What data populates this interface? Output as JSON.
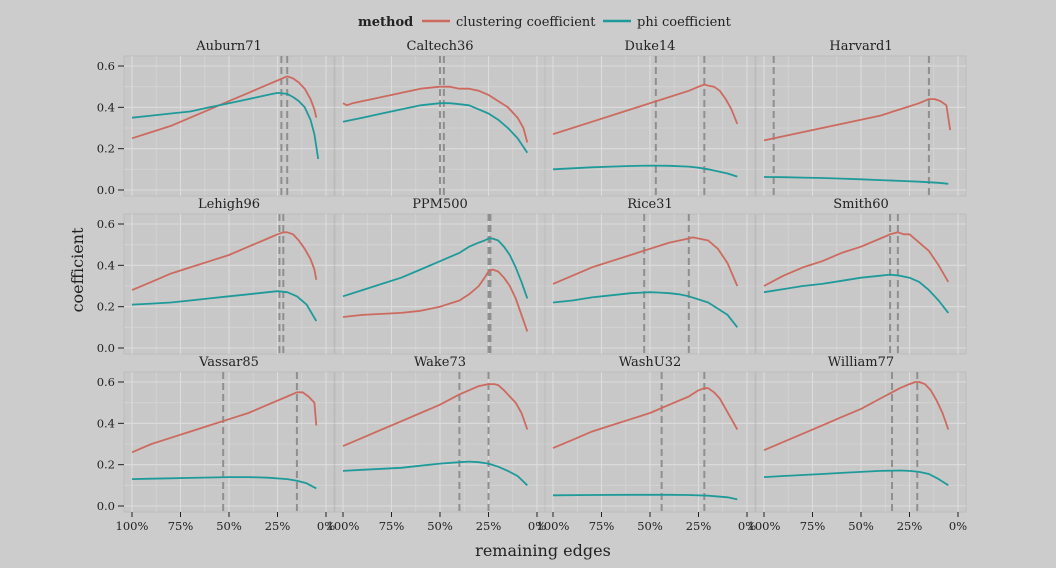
{
  "chart_data": {
    "type": "line",
    "xlabel": "remaining edges",
    "ylabel": "coefficient",
    "xlim": [
      100,
      0
    ],
    "ylim": [
      0,
      0.6
    ],
    "xticks": [
      "100%",
      "75%",
      "50%",
      "25%",
      "0%"
    ],
    "xtick_values": [
      100,
      75,
      50,
      25,
      0
    ],
    "yticks": [
      "0.0",
      "0.2",
      "0.4",
      "0.6"
    ],
    "ytick_values": [
      0,
      0.2,
      0.4,
      0.6
    ],
    "grid": true,
    "legend": {
      "title": "method",
      "position": "top",
      "entries": [
        {
          "name": "clustering coefficient",
          "color": "#cd6a5f"
        },
        {
          "name": "phi coefficient",
          "color": "#1f9a9a"
        }
      ]
    },
    "panels": [
      {
        "title": "Auburn71",
        "vlines": [
          23,
          20
        ],
        "series": [
          {
            "name": "clustering coefficient",
            "x": [
              100,
              90,
              80,
              70,
              60,
              50,
              40,
              35,
              30,
              25,
              20,
              17,
              14,
              11,
              8,
              6,
              5
            ],
            "y": [
              0.25,
              0.28,
              0.31,
              0.35,
              0.39,
              0.43,
              0.47,
              0.49,
              0.51,
              0.53,
              0.55,
              0.54,
              0.52,
              0.49,
              0.44,
              0.39,
              0.35
            ]
          },
          {
            "name": "phi coefficient",
            "x": [
              100,
              90,
              80,
              70,
              60,
              50,
              40,
              35,
              30,
              25,
              20,
              17,
              14,
              11,
              8,
              6,
              4
            ],
            "y": [
              0.35,
              0.36,
              0.37,
              0.38,
              0.4,
              0.42,
              0.44,
              0.45,
              0.46,
              0.47,
              0.465,
              0.45,
              0.43,
              0.4,
              0.34,
              0.27,
              0.15
            ]
          }
        ]
      },
      {
        "title": "Caltech36",
        "vlines": [
          50,
          48
        ],
        "series": [
          {
            "name": "clustering coefficient",
            "x": [
              100,
              98,
              95,
              90,
              85,
              80,
              70,
              60,
              50,
              45,
              40,
              35,
              30,
              25,
              20,
              15,
              10,
              7,
              5
            ],
            "y": [
              0.42,
              0.41,
              0.42,
              0.43,
              0.44,
              0.45,
              0.47,
              0.49,
              0.5,
              0.5,
              0.49,
              0.49,
              0.48,
              0.46,
              0.43,
              0.4,
              0.35,
              0.3,
              0.23
            ]
          },
          {
            "name": "phi coefficient",
            "x": [
              100,
              90,
              80,
              70,
              60,
              50,
              45,
              40,
              35,
              30,
              25,
              20,
              15,
              10,
              5
            ],
            "y": [
              0.33,
              0.35,
              0.37,
              0.39,
              0.41,
              0.42,
              0.42,
              0.415,
              0.41,
              0.39,
              0.37,
              0.34,
              0.3,
              0.25,
              0.18
            ]
          }
        ]
      },
      {
        "title": "Duke14",
        "vlines": [
          47,
          22
        ],
        "series": [
          {
            "name": "clustering coefficient",
            "x": [
              100,
              90,
              80,
              70,
              60,
              50,
              40,
              30,
              25,
              22,
              20,
              17,
              14,
              11,
              8,
              5
            ],
            "y": [
              0.27,
              0.3,
              0.33,
              0.36,
              0.39,
              0.42,
              0.45,
              0.48,
              0.5,
              0.51,
              0.505,
              0.5,
              0.48,
              0.44,
              0.39,
              0.32
            ]
          },
          {
            "name": "phi coefficient",
            "x": [
              100,
              90,
              80,
              70,
              60,
              50,
              40,
              30,
              25,
              20,
              15,
              10,
              5
            ],
            "y": [
              0.1,
              0.105,
              0.11,
              0.113,
              0.116,
              0.118,
              0.117,
              0.113,
              0.108,
              0.1,
              0.09,
              0.08,
              0.065
            ]
          }
        ]
      },
      {
        "title": "Harvard1",
        "vlines": [
          95,
          15
        ],
        "series": [
          {
            "name": "clustering coefficient",
            "x": [
              100,
              90,
              80,
              70,
              60,
              50,
              40,
              30,
              20,
              15,
              12,
              9,
              6,
              4
            ],
            "y": [
              0.24,
              0.26,
              0.28,
              0.3,
              0.32,
              0.34,
              0.36,
              0.39,
              0.42,
              0.44,
              0.44,
              0.43,
              0.41,
              0.29
            ]
          },
          {
            "name": "phi coefficient",
            "x": [
              100,
              90,
              80,
              70,
              60,
              50,
              40,
              30,
              20,
              10,
              5
            ],
            "y": [
              0.063,
              0.062,
              0.06,
              0.058,
              0.055,
              0.052,
              0.048,
              0.044,
              0.04,
              0.035,
              0.03
            ]
          }
        ]
      },
      {
        "title": "Lehigh96",
        "vlines": [
          24,
          22
        ],
        "series": [
          {
            "name": "clustering coefficient",
            "x": [
              100,
              90,
              80,
              70,
              60,
              50,
              40,
              35,
              30,
              25,
              22,
              20,
              17,
              14,
              11,
              8,
              6,
              5
            ],
            "y": [
              0.28,
              0.32,
              0.36,
              0.39,
              0.42,
              0.45,
              0.49,
              0.51,
              0.53,
              0.55,
              0.56,
              0.56,
              0.55,
              0.52,
              0.48,
              0.43,
              0.38,
              0.33
            ]
          },
          {
            "name": "phi coefficient",
            "x": [
              100,
              90,
              80,
              70,
              60,
              50,
              40,
              30,
              25,
              20,
              15,
              10,
              5
            ],
            "y": [
              0.21,
              0.215,
              0.22,
              0.23,
              0.24,
              0.25,
              0.26,
              0.27,
              0.275,
              0.27,
              0.25,
              0.21,
              0.13
            ]
          }
        ]
      },
      {
        "title": "PPM500",
        "vlines": [
          25,
          24
        ],
        "series": [
          {
            "name": "clustering coefficient",
            "x": [
              100,
              90,
              80,
              70,
              60,
              50,
              40,
              35,
              30,
              27,
              25,
              23,
              20,
              17,
              14,
              11,
              8,
              5
            ],
            "y": [
              0.15,
              0.16,
              0.165,
              0.17,
              0.18,
              0.2,
              0.23,
              0.26,
              0.3,
              0.34,
              0.37,
              0.38,
              0.37,
              0.34,
              0.3,
              0.24,
              0.16,
              0.08
            ]
          },
          {
            "name": "phi coefficient",
            "x": [
              100,
              90,
              80,
              70,
              60,
              50,
              40,
              35,
              30,
              27,
              25,
              23,
              20,
              17,
              14,
              11,
              8,
              5
            ],
            "y": [
              0.25,
              0.28,
              0.31,
              0.34,
              0.38,
              0.42,
              0.46,
              0.49,
              0.51,
              0.52,
              0.53,
              0.53,
              0.52,
              0.49,
              0.45,
              0.39,
              0.32,
              0.24
            ]
          }
        ]
      },
      {
        "title": "Rice31",
        "vlines": [
          53,
          30
        ],
        "series": [
          {
            "name": "clustering coefficient",
            "x": [
              100,
              90,
              80,
              70,
              60,
              50,
              40,
              30,
              28,
              25,
              20,
              15,
              10,
              5
            ],
            "y": [
              0.31,
              0.35,
              0.39,
              0.42,
              0.45,
              0.48,
              0.51,
              0.53,
              0.535,
              0.53,
              0.52,
              0.48,
              0.41,
              0.3
            ]
          },
          {
            "name": "phi coefficient",
            "x": [
              100,
              90,
              80,
              70,
              60,
              50,
              45,
              40,
              35,
              30,
              20,
              10,
              5
            ],
            "y": [
              0.22,
              0.23,
              0.245,
              0.255,
              0.265,
              0.27,
              0.268,
              0.265,
              0.26,
              0.25,
              0.22,
              0.16,
              0.1
            ]
          }
        ]
      },
      {
        "title": "Smith60",
        "vlines": [
          35,
          31
        ],
        "series": [
          {
            "name": "clustering coefficient",
            "x": [
              100,
              90,
              80,
              70,
              60,
              50,
              40,
              35,
              31,
              28,
              25,
              20,
              15,
              10,
              5
            ],
            "y": [
              0.3,
              0.35,
              0.39,
              0.42,
              0.46,
              0.49,
              0.53,
              0.55,
              0.56,
              0.55,
              0.55,
              0.51,
              0.47,
              0.4,
              0.32
            ]
          },
          {
            "name": "phi coefficient",
            "x": [
              100,
              90,
              80,
              70,
              60,
              50,
              40,
              35,
              30,
              25,
              20,
              15,
              10,
              5
            ],
            "y": [
              0.27,
              0.285,
              0.3,
              0.31,
              0.325,
              0.34,
              0.35,
              0.355,
              0.35,
              0.34,
              0.32,
              0.28,
              0.23,
              0.17
            ]
          }
        ]
      },
      {
        "title": "Vassar85",
        "vlines": [
          53,
          15
        ],
        "series": [
          {
            "name": "clustering coefficient",
            "x": [
              100,
              90,
              80,
              70,
              60,
              50,
              40,
              30,
              20,
              15,
              12,
              9,
              6,
              5
            ],
            "y": [
              0.26,
              0.3,
              0.33,
              0.36,
              0.39,
              0.42,
              0.45,
              0.49,
              0.53,
              0.55,
              0.55,
              0.53,
              0.5,
              0.39
            ]
          },
          {
            "name": "phi coefficient",
            "x": [
              100,
              90,
              80,
              70,
              60,
              50,
              40,
              30,
              20,
              15,
              10,
              5
            ],
            "y": [
              0.13,
              0.132,
              0.134,
              0.136,
              0.138,
              0.14,
              0.14,
              0.137,
              0.13,
              0.122,
              0.11,
              0.085
            ]
          }
        ]
      },
      {
        "title": "Wake73",
        "vlines": [
          40,
          25
        ],
        "series": [
          {
            "name": "clustering coefficient",
            "x": [
              100,
              90,
              80,
              70,
              60,
              50,
              40,
              30,
              25,
              22,
              20,
              17,
              14,
              11,
              8,
              5
            ],
            "y": [
              0.29,
              0.33,
              0.37,
              0.41,
              0.45,
              0.49,
              0.54,
              0.58,
              0.59,
              0.59,
              0.585,
              0.56,
              0.53,
              0.5,
              0.45,
              0.37
            ]
          },
          {
            "name": "phi coefficient",
            "x": [
              100,
              90,
              80,
              70,
              60,
              50,
              40,
              35,
              30,
              25,
              20,
              15,
              10,
              5
            ],
            "y": [
              0.17,
              0.175,
              0.18,
              0.185,
              0.195,
              0.205,
              0.212,
              0.215,
              0.212,
              0.205,
              0.19,
              0.17,
              0.145,
              0.1
            ]
          }
        ]
      },
      {
        "title": "WashU32",
        "vlines": [
          44,
          22
        ],
        "series": [
          {
            "name": "clustering coefficient",
            "x": [
              100,
              90,
              80,
              70,
              60,
              50,
              40,
              30,
              25,
              22,
              20,
              17,
              14,
              11,
              8,
              5
            ],
            "y": [
              0.28,
              0.32,
              0.36,
              0.39,
              0.42,
              0.45,
              0.49,
              0.53,
              0.56,
              0.57,
              0.57,
              0.55,
              0.52,
              0.47,
              0.42,
              0.37
            ]
          },
          {
            "name": "phi coefficient",
            "x": [
              100,
              80,
              60,
              50,
              40,
              30,
              20,
              10,
              5
            ],
            "y": [
              0.052,
              0.053,
              0.054,
              0.054,
              0.054,
              0.053,
              0.05,
              0.042,
              0.032
            ]
          }
        ]
      },
      {
        "title": "William77",
        "vlines": [
          34,
          21
        ],
        "series": [
          {
            "name": "clustering coefficient",
            "x": [
              100,
              90,
              80,
              70,
              60,
              50,
              40,
              30,
              25,
              22,
              20,
              17,
              14,
              11,
              8,
              5
            ],
            "y": [
              0.27,
              0.31,
              0.35,
              0.39,
              0.43,
              0.47,
              0.52,
              0.57,
              0.59,
              0.6,
              0.6,
              0.59,
              0.56,
              0.51,
              0.45,
              0.37
            ]
          },
          {
            "name": "phi coefficient",
            "x": [
              100,
              90,
              80,
              70,
              60,
              50,
              40,
              30,
              25,
              20,
              15,
              10,
              5
            ],
            "y": [
              0.14,
              0.145,
              0.15,
              0.155,
              0.16,
              0.165,
              0.17,
              0.172,
              0.17,
              0.165,
              0.155,
              0.13,
              0.1
            ]
          }
        ]
      }
    ]
  }
}
